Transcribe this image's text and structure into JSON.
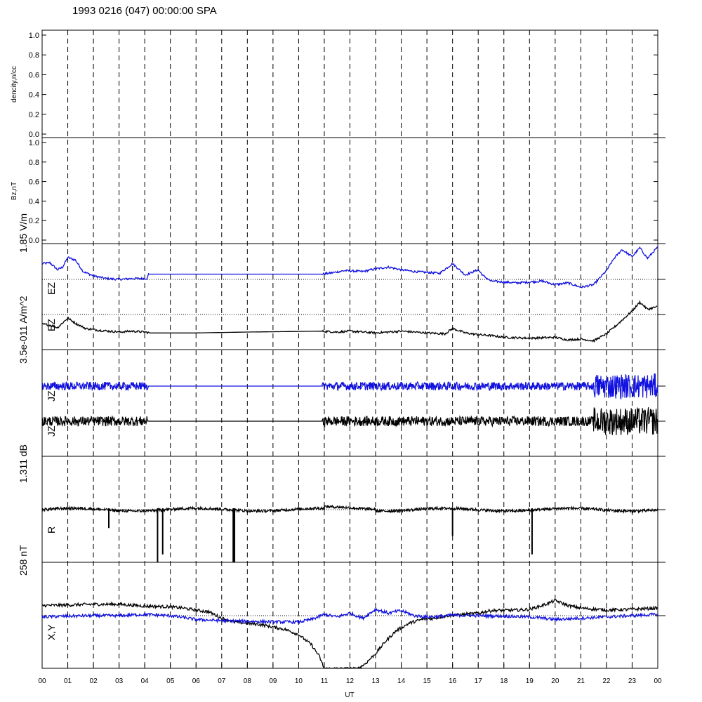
{
  "title": "1993 0216 (047) 00:00:00 SPA",
  "x_axis": {
    "label": "UT",
    "ticks": [
      "00",
      "01",
      "02",
      "03",
      "04",
      "05",
      "06",
      "07",
      "08",
      "09",
      "10",
      "11",
      "12",
      "13",
      "14",
      "15",
      "16",
      "17",
      "18",
      "19",
      "20",
      "21",
      "22",
      "23",
      "00"
    ]
  },
  "panels": {
    "density": {
      "ylabel": "dencity,n/cc",
      "ticks": [
        "0.0",
        "0.2",
        "0.4",
        "0.6",
        "0.8",
        "1.0"
      ]
    },
    "bz": {
      "ylabel": "Bz,nT",
      "ticks": [
        "0.0",
        "0.2",
        "0.4",
        "0.6",
        "0.8",
        "1.0"
      ]
    },
    "ez": {
      "scale_label": "1.85 V/m",
      "trace1_label": "EZ",
      "trace2_label": "EZ"
    },
    "jz": {
      "scale_label": "3.5e-011 A/m^2",
      "trace1_label": "JZ",
      "trace2_label": "JZ"
    },
    "r": {
      "scale_label": "1.311 dB",
      "trace_label": "R"
    },
    "xy": {
      "scale_label": "258 nT",
      "trace_label": "X,Y"
    }
  },
  "colors": {
    "blue": "#1010e0",
    "black": "#000000"
  },
  "chart_data": {
    "type": "line",
    "x_unit": "UT hour",
    "xlim": [
      0,
      24
    ],
    "series": [
      {
        "panel": "ez",
        "color": "blue",
        "points": [
          [
            0,
            0.9
          ],
          [
            0.3,
            0.95
          ],
          [
            0.6,
            0.55
          ],
          [
            0.8,
            0.7
          ],
          [
            1.0,
            1.25
          ],
          [
            1.3,
            1.1
          ],
          [
            1.6,
            0.45
          ],
          [
            2.0,
            0.2
          ],
          [
            2.5,
            0.05
          ],
          [
            3,
            0.0
          ],
          [
            3.5,
            0.05
          ],
          [
            4.1,
            0.05
          ],
          [
            4.15,
            0.3
          ],
          [
            6,
            0.3
          ],
          [
            8,
            0.3
          ],
          [
            10.9,
            0.3
          ],
          [
            11.2,
            0.35
          ],
          [
            11.8,
            0.5
          ],
          [
            12.5,
            0.45
          ],
          [
            13,
            0.6
          ],
          [
            13.5,
            0.7
          ],
          [
            14,
            0.55
          ],
          [
            14.5,
            0.45
          ],
          [
            15,
            0.4
          ],
          [
            15.5,
            0.35
          ],
          [
            16,
            0.9
          ],
          [
            16.5,
            0.25
          ],
          [
            17,
            0.55
          ],
          [
            17.2,
            0.2
          ],
          [
            17.5,
            -0.1
          ],
          [
            18,
            -0.15
          ],
          [
            18.5,
            -0.2
          ],
          [
            19,
            -0.15
          ],
          [
            19.5,
            -0.1
          ],
          [
            20,
            -0.3
          ],
          [
            20.5,
            -0.2
          ],
          [
            21,
            -0.45
          ],
          [
            21.5,
            -0.3
          ],
          [
            22,
            0.5
          ],
          [
            22.3,
            1.2
          ],
          [
            22.6,
            1.7
          ],
          [
            23,
            1.3
          ],
          [
            23.3,
            1.8
          ],
          [
            23.6,
            1.2
          ],
          [
            24,
            1.85
          ]
        ]
      },
      {
        "panel": "ez",
        "color": "black",
        "points": [
          [
            0,
            -0.55
          ],
          [
            0.3,
            -0.6
          ],
          [
            0.6,
            -0.75
          ],
          [
            1.0,
            -0.2
          ],
          [
            1.3,
            -0.5
          ],
          [
            1.7,
            -0.8
          ],
          [
            2.2,
            -0.9
          ],
          [
            3,
            -1.0
          ],
          [
            3.5,
            -0.95
          ],
          [
            4,
            -1.0
          ],
          [
            4.2,
            -1.05
          ],
          [
            6,
            -1.05
          ],
          [
            8,
            -1.0
          ],
          [
            10.9,
            -0.95
          ],
          [
            11.5,
            -1.0
          ],
          [
            12,
            -0.95
          ],
          [
            13,
            -1.05
          ],
          [
            14,
            -0.95
          ],
          [
            15,
            -1.05
          ],
          [
            15.7,
            -1.1
          ],
          [
            16,
            -0.8
          ],
          [
            16.5,
            -1.05
          ],
          [
            17,
            -1.15
          ],
          [
            17.5,
            -1.2
          ],
          [
            18,
            -1.3
          ],
          [
            19,
            -1.35
          ],
          [
            20,
            -1.3
          ],
          [
            20.5,
            -1.45
          ],
          [
            21,
            -1.4
          ],
          [
            21.5,
            -1.5
          ],
          [
            22,
            -1.1
          ],
          [
            22.4,
            -0.6
          ],
          [
            22.7,
            -0.2
          ],
          [
            23,
            0.2
          ],
          [
            23.3,
            0.7
          ],
          [
            23.6,
            0.3
          ],
          [
            24,
            0.45
          ]
        ]
      },
      {
        "panel": "xy",
        "color": "black",
        "points": [
          [
            0,
            0.4
          ],
          [
            1,
            0.42
          ],
          [
            2,
            0.45
          ],
          [
            3,
            0.45
          ],
          [
            4,
            0.38
          ],
          [
            5,
            0.35
          ],
          [
            5.5,
            0.3
          ],
          [
            6,
            0.22
          ],
          [
            6.5,
            0.15
          ],
          [
            7,
            -0.1
          ],
          [
            7.5,
            -0.25
          ],
          [
            8,
            -0.3
          ],
          [
            8.5,
            -0.35
          ],
          [
            9,
            -0.45
          ],
          [
            9.5,
            -0.55
          ],
          [
            10,
            -0.75
          ],
          [
            10.5,
            -1.15
          ],
          [
            10.8,
            -1.6
          ],
          [
            11,
            -2.1
          ],
          [
            12.3,
            -2.1
          ],
          [
            12.6,
            -1.9
          ],
          [
            13,
            -1.5
          ],
          [
            13.4,
            -1.0
          ],
          [
            13.8,
            -0.6
          ],
          [
            14.3,
            -0.3
          ],
          [
            14.8,
            -0.15
          ],
          [
            15.3,
            -0.1
          ],
          [
            15.8,
            0.0
          ],
          [
            16.5,
            0.05
          ],
          [
            17,
            0.1
          ],
          [
            17.5,
            0.2
          ],
          [
            18.5,
            0.22
          ],
          [
            19,
            0.25
          ],
          [
            19.5,
            0.4
          ],
          [
            20,
            0.6
          ],
          [
            20.5,
            0.4
          ],
          [
            21,
            0.3
          ],
          [
            22,
            0.22
          ],
          [
            23,
            0.25
          ],
          [
            24,
            0.3
          ]
        ]
      },
      {
        "panel": "xy",
        "color": "blue",
        "points": [
          [
            0,
            -0.05
          ],
          [
            1,
            -0.02
          ],
          [
            2,
            0.0
          ],
          [
            3,
            0.0
          ],
          [
            4,
            0.05
          ],
          [
            5,
            0.0
          ],
          [
            6,
            -0.15
          ],
          [
            7,
            -0.2
          ],
          [
            8,
            -0.22
          ],
          [
            9,
            -0.25
          ],
          [
            10,
            -0.25
          ],
          [
            10.5,
            -0.15
          ],
          [
            11,
            0.05
          ],
          [
            11.5,
            -0.05
          ],
          [
            12,
            0.1
          ],
          [
            12.5,
            -0.1
          ],
          [
            13,
            0.25
          ],
          [
            13.5,
            0.1
          ],
          [
            14,
            0.2
          ],
          [
            14.5,
            0.0
          ],
          [
            15,
            -0.05
          ],
          [
            15.5,
            -0.03
          ],
          [
            16,
            0.02
          ],
          [
            17,
            0.0
          ],
          [
            18,
            -0.02
          ],
          [
            19,
            -0.05
          ],
          [
            20,
            -0.15
          ],
          [
            21,
            -0.1
          ],
          [
            22,
            -0.05
          ],
          [
            23,
            0.0
          ],
          [
            24,
            0.05
          ]
        ]
      }
    ],
    "noise_series": [
      {
        "panel": "jz",
        "color": "blue",
        "baseline": 0.5,
        "segments": [
          [
            0,
            4.1,
            0.3
          ],
          [
            4.15,
            10.9,
            0.0
          ],
          [
            10.95,
            21.5,
            0.3
          ],
          [
            21.5,
            24,
            0.9
          ]
        ]
      },
      {
        "panel": "jz",
        "color": "black",
        "baseline": -0.5,
        "segments": [
          [
            0,
            4.1,
            0.35
          ],
          [
            4.15,
            10.9,
            0.0
          ],
          [
            10.95,
            21.5,
            0.35
          ],
          [
            21.5,
            24,
            1.0
          ]
        ]
      },
      {
        "panel": "r",
        "color": "black",
        "baseline": 0.0,
        "segments": [
          [
            0,
            24,
            0.1
          ]
        ]
      }
    ],
    "spikes": [
      {
        "panel": "r",
        "x": [
          2.6,
          4.5,
          4.7,
          7.45,
          7.5,
          16,
          19.1
        ],
        "depth": [
          0.35,
          1.0,
          0.85,
          1.0,
          1.0,
          0.5,
          0.85
        ]
      }
    ]
  }
}
